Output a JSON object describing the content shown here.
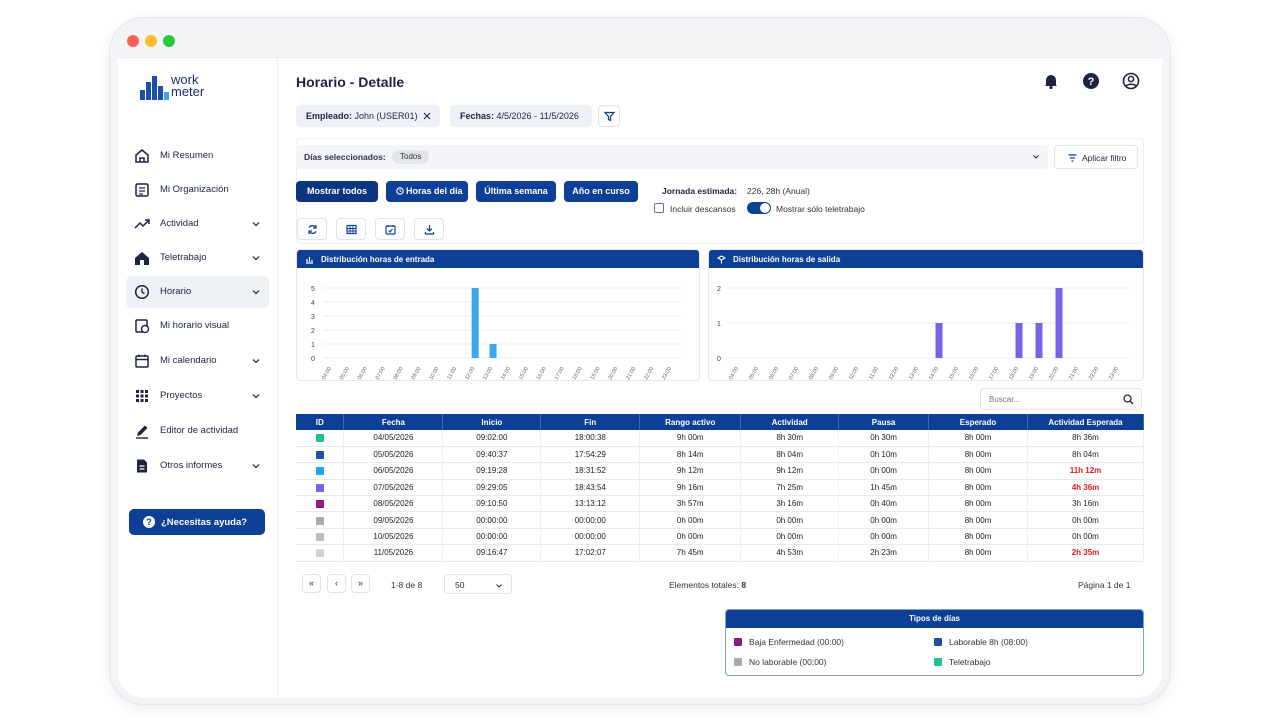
{
  "app": {
    "logo_line1": "work",
    "logo_line2": "meter",
    "page_title": "Horario - Detalle"
  },
  "sidebar": {
    "items": [
      {
        "label": "Mi Resumen",
        "icon": "home-icon"
      },
      {
        "label": "Mi Organización",
        "icon": "organization-icon"
      },
      {
        "label": "Actividad",
        "icon": "trend-icon"
      },
      {
        "label": "Teletrabajo",
        "icon": "remote-work-icon"
      },
      {
        "label": "Horario",
        "icon": "clock-icon"
      },
      {
        "label": "Mi horario visual",
        "icon": "visual-schedule-icon"
      },
      {
        "label": "Mi calendario",
        "icon": "calendar-icon"
      },
      {
        "label": "Proyectos",
        "icon": "projects-grid-icon"
      },
      {
        "label": "Editor de actividad",
        "icon": "pencil-icon"
      },
      {
        "label": "Otros informes",
        "icon": "report-icon"
      }
    ],
    "help_label": "¿Necesitas ayuda?"
  },
  "filters": {
    "employee_key": "Empleado:",
    "employee_value": "John (USER01)",
    "dates_key": "Fechas:",
    "dates_value": "4/5/2026 - 11/5/2026",
    "days_label": "Días seleccionados:",
    "days_chip": "Todos",
    "apply_label": "Aplicar filtro"
  },
  "actions": {
    "show_all": "Mostrar todos",
    "day_hours": "Horas del día",
    "last_week": "Última semana",
    "current_year": "Año en curso",
    "estimated_label": "Jornada estimada:",
    "estimated_value": "226, 28h (Anual)",
    "include_breaks": "Incluir descansos",
    "only_remote": "Mostrar sólo teletrabajo"
  },
  "chart_data": [
    {
      "type": "bar",
      "title": "Distribución horas de entrada",
      "categories": [
        "04:00",
        "05:00",
        "06:00",
        "07:00",
        "08:00",
        "09:00",
        "10:00",
        "11:00",
        "12:00",
        "13:00",
        "14:00",
        "15:00",
        "16:00",
        "17:00",
        "18:00",
        "19:00",
        "20:00",
        "21:00",
        "22:00",
        "23:00"
      ],
      "tick_labels": [
        "04:00",
        "05:00",
        "06:00",
        "07:00",
        "08:00",
        "09:00",
        "10:00",
        "11:00",
        "12:00",
        "13:00",
        "14:00",
        "15:00",
        "16:00",
        "17:00",
        "18:00",
        "19:00",
        "20:00",
        "21:00",
        "22:00",
        "23:00"
      ],
      "values": [
        0,
        0,
        0,
        0,
        0,
        0,
        0,
        0,
        5,
        1,
        0,
        0,
        0,
        0,
        0,
        0,
        0,
        0,
        0,
        0
      ],
      "ylim": [
        0,
        5
      ],
      "yticks": [
        "0",
        "1",
        "2",
        "3",
        "4",
        "5"
      ],
      "color": "#3aa8f0",
      "grid": true
    },
    {
      "type": "bar",
      "title": "Distribución horas de salida",
      "categories": [
        "04:00",
        "05:00",
        "06:00",
        "07:00",
        "08:00",
        "09:00",
        "10:00",
        "11:00",
        "12:00",
        "13:00",
        "14:00",
        "15:00",
        "16:00",
        "17:00",
        "18:00",
        "19:00",
        "20:00",
        "21:00",
        "22:00",
        "23:00"
      ],
      "tick_labels": [
        "04:00",
        "05:00",
        "06:00",
        "07:00",
        "08:00",
        "09:00",
        "10:00",
        "11:00",
        "12:00",
        "13:00",
        "14:00",
        "15:00",
        "16:00",
        "17:00",
        "18:00",
        "19:00",
        "20:00",
        "21:00",
        "22:00",
        "23:00"
      ],
      "values": [
        0,
        0,
        0,
        0,
        0,
        0,
        0,
        0,
        0,
        0,
        1,
        0,
        0,
        0,
        1,
        1,
        2,
        0,
        0,
        0
      ],
      "ylim": [
        0,
        2
      ],
      "yticks": [
        "0",
        "1",
        "2"
      ],
      "color": "#7b61e8",
      "grid": true
    }
  ],
  "search": {
    "placeholder": "Buscar..."
  },
  "table": {
    "headers": [
      "ID",
      "Fecha",
      "Inicio",
      "Fin",
      "Rango activo",
      "Actividad",
      "Pausa",
      "Esperado",
      "Actividad Esperada"
    ],
    "rows": [
      {
        "color": "#22c08a",
        "cells": [
          "04/05/2026",
          "09:02:00",
          "18:00:38",
          "9h 00m",
          "8h 30m",
          "0h 30m",
          "8h 00m",
          "8h 36m"
        ],
        "alert": false
      },
      {
        "color": "#1d4fa8",
        "cells": [
          "05/05/2026",
          "09:40:37",
          "17:54:29",
          "8h 14m",
          "8h 04m",
          "0h 10m",
          "8h 00m",
          "8h 04m"
        ],
        "alert": false
      },
      {
        "color": "#1fa8e8",
        "cells": [
          "06/05/2026",
          "09:19:28",
          "18:31:52",
          "9h 12m",
          "9h 12m",
          "0h 00m",
          "8h 00m",
          "11h 12m"
        ],
        "alert": true
      },
      {
        "color": "#7b61e8",
        "cells": [
          "07/05/2026",
          "09:29:05",
          "18:43:54",
          "9h 16m",
          "7h 25m",
          "1h 45m",
          "8h 00m",
          "4h 36m"
        ],
        "alert": true
      },
      {
        "color": "#8e1a7e",
        "cells": [
          "08/05/2026",
          "09:10:50",
          "13:13:12",
          "3h 57m",
          "3h 16m",
          "0h 40m",
          "8h 00m",
          "3h 16m"
        ],
        "alert": false
      },
      {
        "color": "#a9a9a9",
        "cells": [
          "09/05/2026",
          "00:00:00",
          "00:00:00",
          "0h 00m",
          "0h 00m",
          "0h 00m",
          "8h 00m",
          "0h 00m"
        ],
        "alert": false
      },
      {
        "color": "#bdbdbd",
        "cells": [
          "10/05/2026",
          "00:00:00",
          "00:00:00",
          "0h 00m",
          "0h 00m",
          "0h 00m",
          "8h 00m",
          "0h 00m"
        ],
        "alert": false
      },
      {
        "color": "#d2d2d2",
        "cells": [
          "11/05/2026",
          "09:16:47",
          "17:02:07",
          "7h 45m",
          "4h 53m",
          "2h 23m",
          "8h 00m",
          "2h 35m"
        ],
        "alert": true
      }
    ]
  },
  "pager": {
    "range": "1-8 de 8",
    "page_size": "50",
    "total_label": "Elementos totales:",
    "total_value": "8",
    "page_label": "Página 1 de",
    "page_total": "1"
  },
  "legend": {
    "title": "Tipos de días",
    "items": [
      {
        "label": "Baja Enfermedad (00:00)",
        "color": "#8e1a7e"
      },
      {
        "label": "Laborable 8h (08:00)",
        "color": "#1d4fa8"
      },
      {
        "label": "No laborable (00:00)",
        "color": "#a9a9a9"
      },
      {
        "label": "Teletrabajo",
        "color": "#22c08a"
      }
    ]
  }
}
